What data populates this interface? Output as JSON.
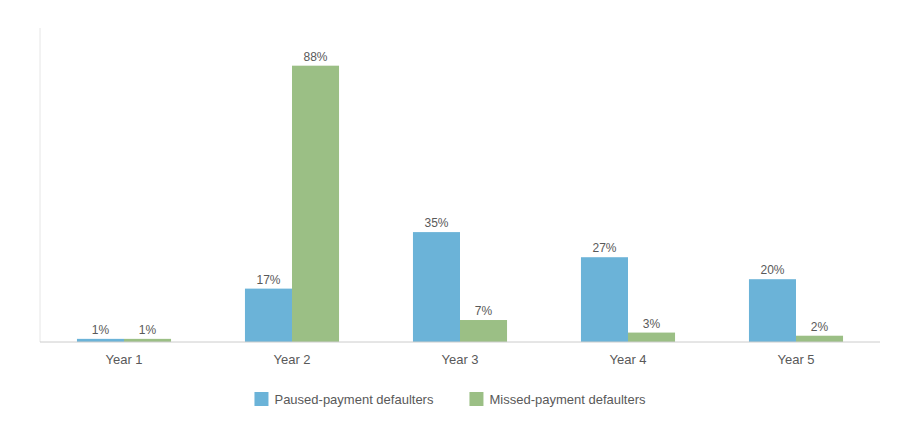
{
  "chart_data": {
    "type": "bar",
    "categories": [
      "Year 1",
      "Year 2",
      "Year 3",
      "Year 4",
      "Year 5"
    ],
    "series": [
      {
        "name": "Paused-payment defaulters",
        "color": "#6BB3D8",
        "values": [
          1,
          17,
          35,
          27,
          20
        ],
        "value_labels": [
          "1%",
          "17%",
          "35%",
          "27%",
          "20%"
        ]
      },
      {
        "name": "Missed-payment defaulters",
        "color": "#9BBF85",
        "values": [
          1,
          88,
          7,
          3,
          2
        ],
        "value_labels": [
          "1%",
          "88%",
          "7%",
          "3%",
          "2%"
        ]
      }
    ],
    "ylim": [
      0,
      100
    ],
    "grid": false,
    "legend": "bottom",
    "data_labels": true,
    "tick_labels": "x"
  }
}
